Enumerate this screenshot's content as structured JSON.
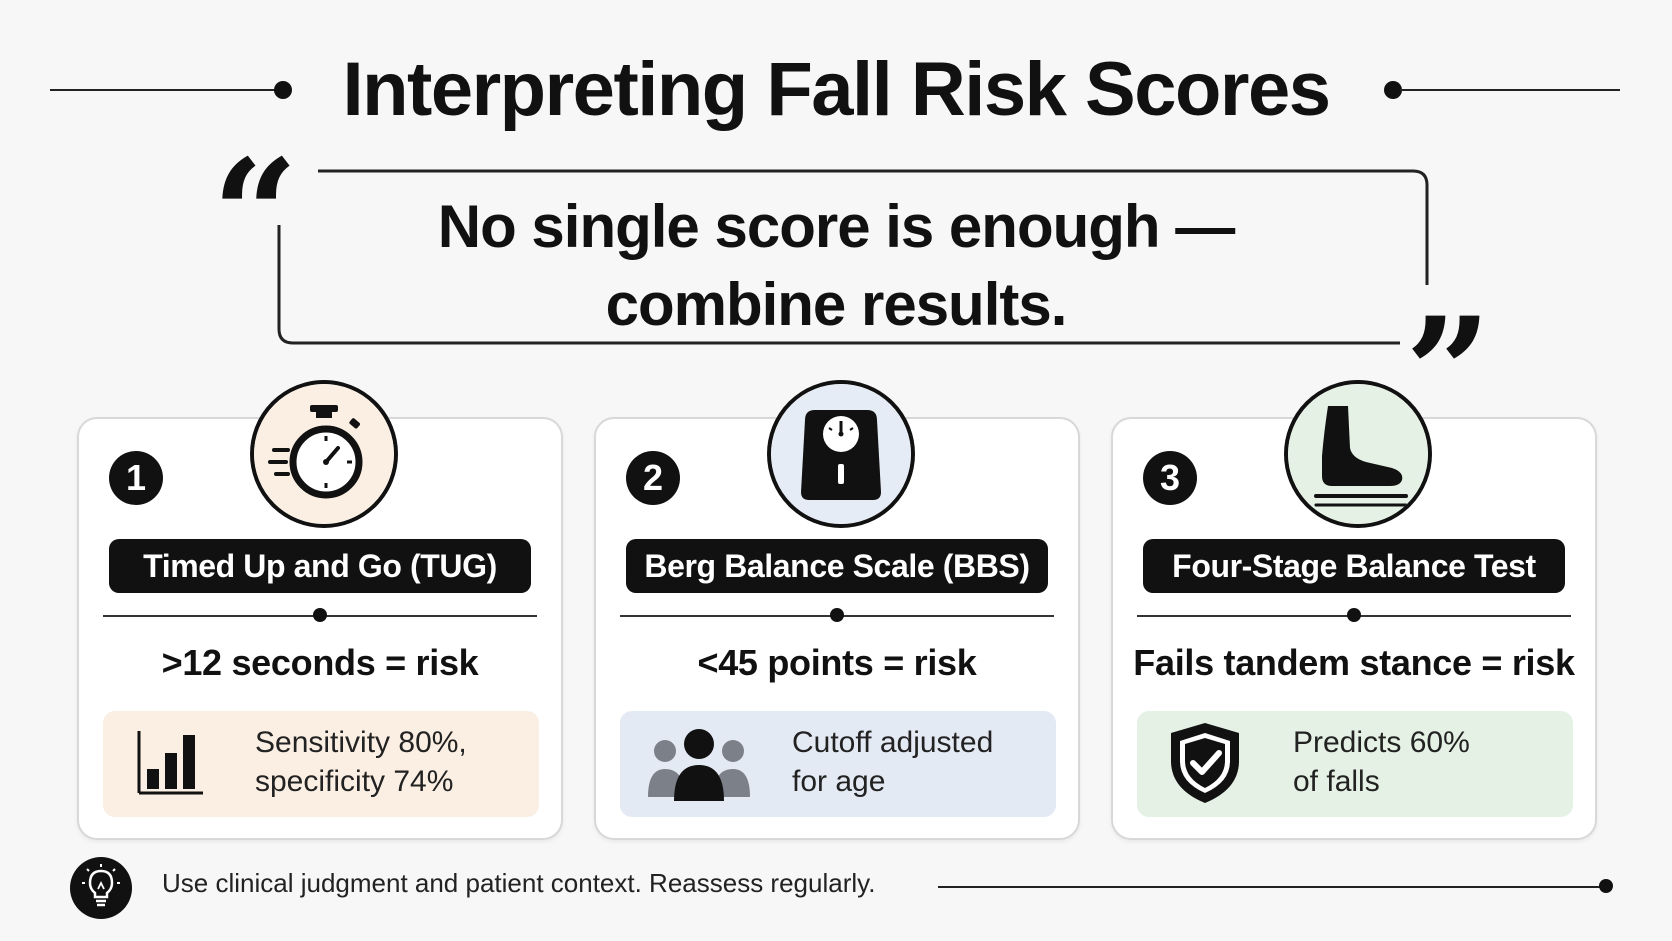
{
  "title": "Interpreting Fall Risk Scores",
  "quote": {
    "open_mark": "“",
    "close_mark": "”",
    "line1": "No single score is enough —",
    "line2": "combine results."
  },
  "cards": [
    {
      "number": "1",
      "icon": "stopwatch-icon",
      "name": "Timed Up and Go (TUG)",
      "rule": ">12 seconds = risk",
      "stat_icon": "bar-chart-icon",
      "stat_line1": "Sensitivity 80%,",
      "stat_line2": "specificity 74%",
      "icon_bg": "#fbefe3",
      "stat_bg": "#fbefe3"
    },
    {
      "number": "2",
      "icon": "scale-icon",
      "name": "Berg Balance Scale (BBS)",
      "rule": "<45 points = risk",
      "stat_icon": "people-icon",
      "stat_line1": "Cutoff adjusted",
      "stat_line2": "for age",
      "icon_bg": "#e6ecf5",
      "stat_bg": "#e4eaf3"
    },
    {
      "number": "3",
      "icon": "foot-icon",
      "name": "Four-Stage Balance Test",
      "rule": "Fails tandem stance = risk",
      "stat_icon": "shield-check-icon",
      "stat_line1": "Predicts 60%",
      "stat_line2": "of falls",
      "icon_bg": "#e6f1e6",
      "stat_bg": "#e4f1e4"
    }
  ],
  "footer": {
    "icon": "lightbulb-icon",
    "text": "Use clinical judgment and patient context. Reassess regularly."
  }
}
